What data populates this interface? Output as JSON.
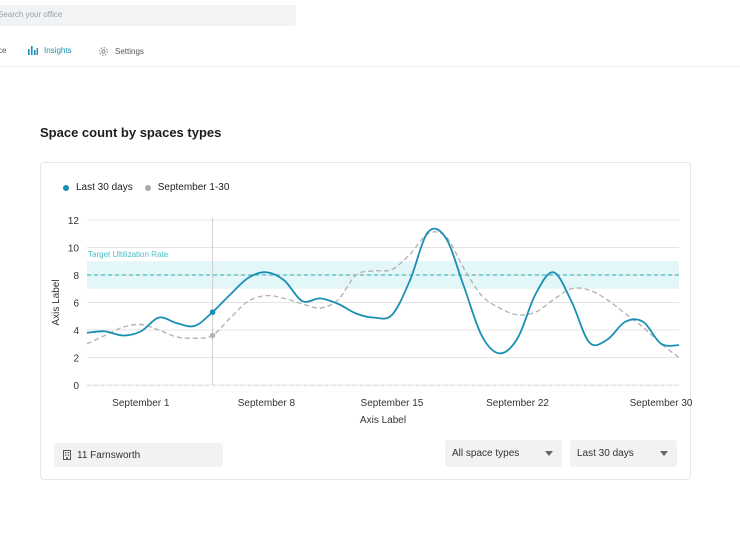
{
  "search": {
    "placeholder": "Search your office"
  },
  "nav": {
    "partial_label": "ce",
    "insights_label": "Insights",
    "settings_label": "Settings"
  },
  "page_title": "Space count by spaces types",
  "legend": [
    {
      "label": "Last 30 days",
      "color": "#1a8fb4"
    },
    {
      "label": "September 1-30",
      "color": "#a9a9a9"
    }
  ],
  "filters": {
    "office": "11 Farnsworth",
    "space_type": "All space types",
    "period": "Last 30 days"
  },
  "colors": {
    "accent": "#1a8fb4",
    "secondary": "#b5b5b5",
    "target_band": "#e3f6f8",
    "target_line": "#4bbec6"
  },
  "chart_data": {
    "type": "line",
    "title": "",
    "xlabel": "Axis Label",
    "ylabel": "Axis Label",
    "ylim": [
      0,
      12
    ],
    "yticks": [
      0,
      2,
      4,
      6,
      8,
      10,
      12
    ],
    "xlim": [
      -2,
      31
    ],
    "xticks": [
      {
        "day": 1,
        "label": "September 1"
      },
      {
        "day": 8,
        "label": "September 8"
      },
      {
        "day": 15,
        "label": "September 15"
      },
      {
        "day": 22,
        "label": "September 22"
      },
      {
        "day": 30,
        "label": "September 30"
      }
    ],
    "grid": true,
    "target": {
      "label": "Target Ultilization Rate",
      "value": 8,
      "band": [
        7,
        9
      ]
    },
    "highlight_day": 5,
    "series": [
      {
        "name": "Last 30 days",
        "style": "solid",
        "x": [
          -2,
          -1,
          0,
          1,
          2,
          3,
          4,
          5,
          6,
          7,
          8,
          9,
          10,
          11,
          12,
          13,
          14,
          15,
          16,
          17,
          18,
          19,
          20,
          21,
          22,
          23,
          24,
          25,
          26,
          27,
          28,
          29,
          30,
          31
        ],
        "values": [
          3.8,
          3.9,
          3.6,
          3.9,
          4.9,
          4.5,
          4.3,
          5.3,
          6.6,
          7.8,
          8.2,
          7.6,
          6.1,
          6.3,
          5.9,
          5.2,
          4.9,
          5.1,
          7.6,
          11.1,
          10.7,
          7.2,
          3.6,
          2.3,
          3.4,
          6.6,
          8.2,
          6.1,
          3.1,
          3.3,
          4.6,
          4.6,
          3.0,
          2.9
        ]
      },
      {
        "name": "September 1-30",
        "style": "dashed",
        "x": [
          -2,
          -1,
          0,
          1,
          2,
          3,
          4,
          5,
          6,
          7,
          8,
          9,
          10,
          11,
          12,
          13,
          14,
          15,
          16,
          17,
          18,
          19,
          20,
          21,
          22,
          23,
          24,
          25,
          26,
          27,
          28,
          29,
          30,
          31
        ],
        "values": [
          3.0,
          3.6,
          4.2,
          4.4,
          4.0,
          3.5,
          3.4,
          3.6,
          4.9,
          6.1,
          6.5,
          6.3,
          5.9,
          5.6,
          6.2,
          8.0,
          8.3,
          8.4,
          9.5,
          11.0,
          10.8,
          8.5,
          6.5,
          5.6,
          5.1,
          5.3,
          6.2,
          7.0,
          6.9,
          6.2,
          5.2,
          4.2,
          3.0,
          2.0
        ]
      }
    ]
  }
}
